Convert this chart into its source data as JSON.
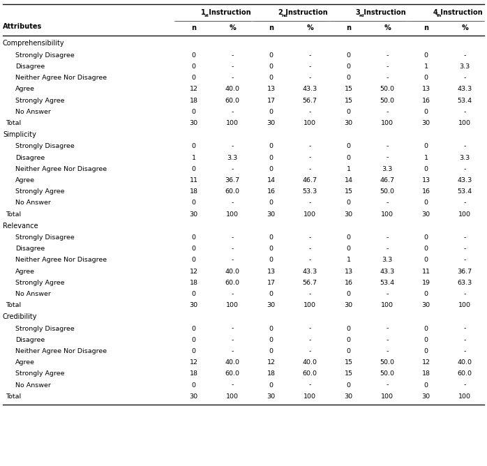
{
  "col_superscripts": [
    "st",
    "nd",
    "rd",
    "th"
  ],
  "sections": [
    {
      "name": "Comprehensibility",
      "rows": [
        {
          "label": "Strongly Disagree",
          "data": [
            "0",
            "-",
            "0",
            "-",
            "0",
            "-",
            "0",
            "-"
          ]
        },
        {
          "label": "Disagree",
          "data": [
            "0",
            "-",
            "0",
            "-",
            "0",
            "-",
            "1",
            "3.3"
          ]
        },
        {
          "label": "Neither Agree Nor Disagree",
          "data": [
            "0",
            "-",
            "0",
            "-",
            "0",
            "-",
            "0",
            "-"
          ]
        },
        {
          "label": "Agree",
          "data": [
            "12",
            "40.0",
            "13",
            "43.3",
            "15",
            "50.0",
            "13",
            "43.3"
          ]
        },
        {
          "label": "Strongly Agree",
          "data": [
            "18",
            "60.0",
            "17",
            "56.7",
            "15",
            "50.0",
            "16",
            "53.4"
          ]
        },
        {
          "label": "No Answer",
          "data": [
            "0",
            "-",
            "0",
            "-",
            "0",
            "-",
            "0",
            "-"
          ]
        },
        {
          "label": "Total",
          "data": [
            "30",
            "100",
            "30",
            "100",
            "30",
            "100",
            "30",
            "100"
          ],
          "is_total": true
        }
      ]
    },
    {
      "name": "Simplicity",
      "rows": [
        {
          "label": "Strongly Disagree",
          "data": [
            "0",
            "-",
            "0",
            "-",
            "0",
            "-",
            "0",
            "-"
          ]
        },
        {
          "label": "Disagree",
          "data": [
            "1",
            "3.3",
            "0",
            "-",
            "0",
            "-",
            "1",
            "3.3"
          ]
        },
        {
          "label": "Neither Agree Nor Disagree",
          "data": [
            "0",
            "-",
            "0",
            "-",
            "1",
            "3.3",
            "0",
            "-"
          ]
        },
        {
          "label": "Agree",
          "data": [
            "11",
            "36.7",
            "14",
            "46.7",
            "14",
            "46.7",
            "13",
            "43.3"
          ]
        },
        {
          "label": "Strongly Agree",
          "data": [
            "18",
            "60.0",
            "16",
            "53.3",
            "15",
            "50.0",
            "16",
            "53.4"
          ]
        },
        {
          "label": "No Answer",
          "data": [
            "0",
            "-",
            "0",
            "-",
            "0",
            "-",
            "0",
            "-"
          ]
        },
        {
          "label": "Total",
          "data": [
            "30",
            "100",
            "30",
            "100",
            "30",
            "100",
            "30",
            "100"
          ],
          "is_total": true
        }
      ]
    },
    {
      "name": "Relevance",
      "rows": [
        {
          "label": "Strongly Disagree",
          "data": [
            "0",
            "-",
            "0",
            "-",
            "0",
            "-",
            "0",
            "-"
          ]
        },
        {
          "label": "Disagree",
          "data": [
            "0",
            "-",
            "0",
            "-",
            "0",
            "-",
            "0",
            "-"
          ]
        },
        {
          "label": "Neither Agree Nor Disagree",
          "data": [
            "0",
            "-",
            "0",
            "-",
            "1",
            "3.3",
            "0",
            "-"
          ]
        },
        {
          "label": "Agree",
          "data": [
            "12",
            "40.0",
            "13",
            "43.3",
            "13",
            "43.3",
            "11",
            "36.7"
          ]
        },
        {
          "label": "Strongly Agree",
          "data": [
            "18",
            "60.0",
            "17",
            "56.7",
            "16",
            "53.4",
            "19",
            "63.3"
          ]
        },
        {
          "label": "No Answer",
          "data": [
            "0",
            "-",
            "0",
            "-",
            "0",
            "-",
            "0",
            "-"
          ]
        },
        {
          "label": "Total",
          "data": [
            "30",
            "100",
            "30",
            "100",
            "30",
            "100",
            "30",
            "100"
          ],
          "is_total": true
        }
      ]
    },
    {
      "name": "Credibility",
      "rows": [
        {
          "label": "Strongly Disagree",
          "data": [
            "0",
            "-",
            "0",
            "-",
            "0",
            "-",
            "0",
            "-"
          ]
        },
        {
          "label": "Disagree",
          "data": [
            "0",
            "-",
            "0",
            "-",
            "0",
            "-",
            "0",
            "-"
          ]
        },
        {
          "label": "Neither Agree Nor Disagree",
          "data": [
            "0",
            "-",
            "0",
            "-",
            "0",
            "-",
            "0",
            "-"
          ]
        },
        {
          "label": "Agree",
          "data": [
            "12",
            "40.0",
            "12",
            "40.0",
            "15",
            "50.0",
            "12",
            "40.0"
          ]
        },
        {
          "label": "Strongly Agree",
          "data": [
            "18",
            "60.0",
            "18",
            "60.0",
            "15",
            "50.0",
            "18",
            "60.0"
          ]
        },
        {
          "label": "No Answer",
          "data": [
            "0",
            "-",
            "0",
            "-",
            "0",
            "-",
            "0",
            "-"
          ]
        },
        {
          "label": "Total",
          "data": [
            "30",
            "100",
            "30",
            "100",
            "30",
            "100",
            "30",
            "100"
          ],
          "is_total": true
        }
      ]
    }
  ],
  "bg_color": "#ffffff",
  "text_color": "#000000"
}
